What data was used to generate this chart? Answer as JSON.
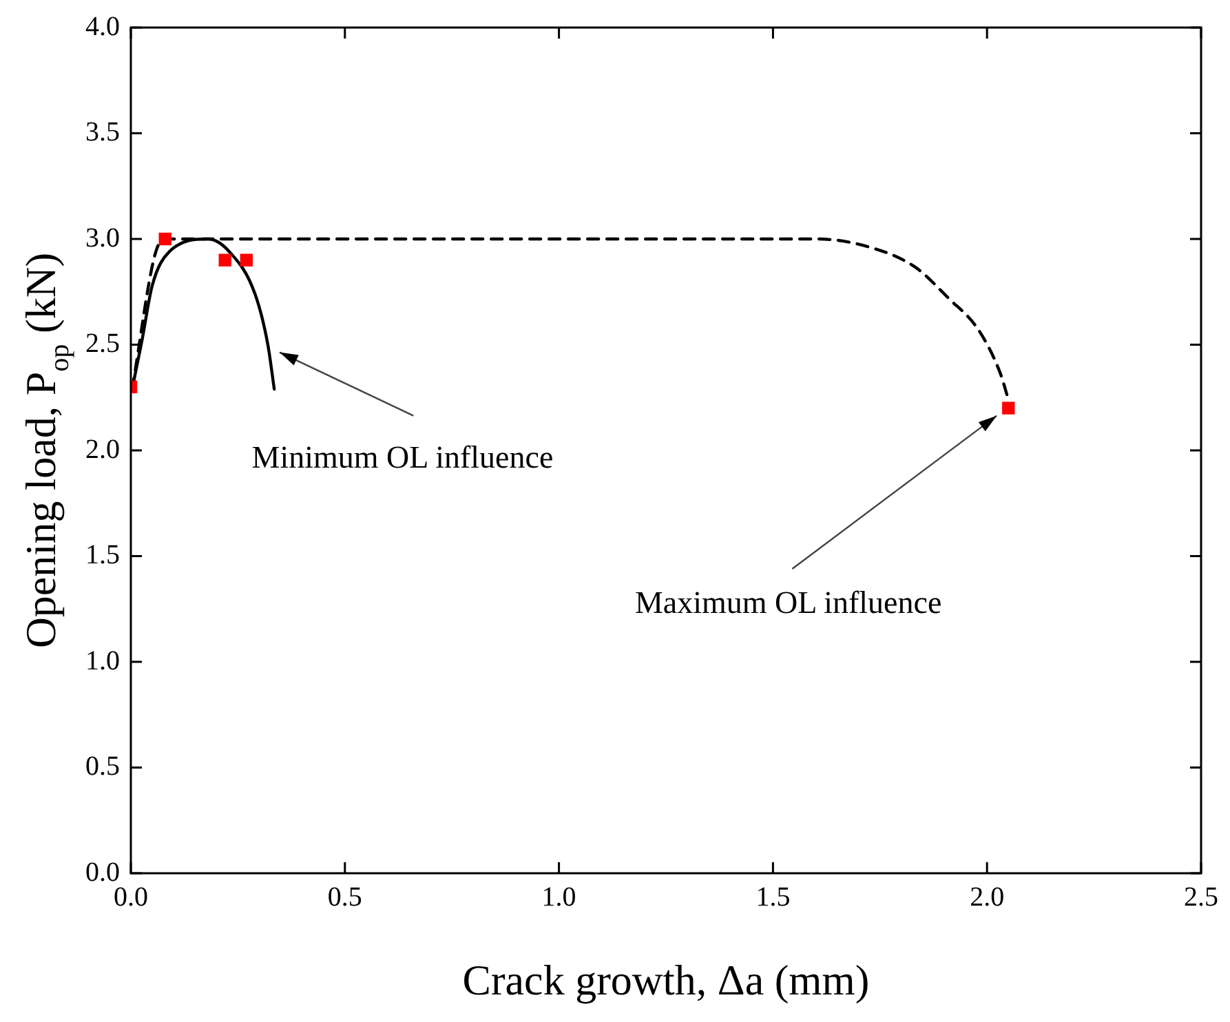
{
  "chart_data": {
    "type": "line",
    "xlabel": "Crack growth, Δa (mm)",
    "ylabel": "Opening load, P$_{op}$ (kN)",
    "xlim": [
      0,
      2.5
    ],
    "xticks": [
      {
        "value": 0,
        "label": "0.0"
      },
      {
        "value": 0.5,
        "label": "0.5"
      },
      {
        "value": 1,
        "label": "1.0"
      },
      {
        "value": 1.5,
        "label": "1.5"
      },
      {
        "value": 2,
        "label": "2.0"
      },
      {
        "value": 2.5,
        "label": "2.5"
      }
    ],
    "ylim": [
      0,
      4
    ],
    "yticks": [
      {
        "value": 0,
        "label": "0.0"
      },
      {
        "value": 0.5,
        "label": "0.5"
      },
      {
        "value": 1,
        "label": "1.0"
      },
      {
        "value": 1.5,
        "label": "1.5"
      },
      {
        "value": 2,
        "label": "2.0"
      },
      {
        "value": 2.5,
        "label": "2.5"
      },
      {
        "value": 3,
        "label": "3.0"
      },
      {
        "value": 3.5,
        "label": "3.5"
      },
      {
        "value": 4,
        "label": "4.0"
      }
    ],
    "grid": false,
    "legend": false,
    "series": [
      {
        "type": "line",
        "color": "#000000",
        "line_style": "solid",
        "marker": "none",
        "x": [
          0.003,
          0.026,
          0.05,
          0.09,
          0.18,
          0.23,
          0.29,
          0.32,
          0.335
        ],
        "values": [
          2.29,
          2.52,
          2.78,
          2.94,
          3.0,
          2.94,
          2.74,
          2.5,
          2.29
        ]
      },
      {
        "type": "line",
        "color": "#000000",
        "line_style": "dashed",
        "marker": "none",
        "x": [
          0.003,
          0.06,
          0.085,
          1.6,
          1.71,
          1.83,
          1.91,
          1.98,
          2.03,
          2.05
        ],
        "values": [
          2.29,
          2.95,
          3.0,
          3.0,
          2.97,
          2.87,
          2.72,
          2.57,
          2.37,
          2.24
        ]
      },
      {
        "type": "scatter",
        "color": "#ff0000",
        "marker": "square",
        "x": [
          0,
          0.08,
          0.22,
          0.27,
          2.05
        ],
        "values": [
          2.3,
          3.0,
          2.9,
          2.9,
          2.2
        ]
      }
    ],
    "annotations": [
      "Minimum OL influence",
      "Maximum OL influence"
    ]
  }
}
